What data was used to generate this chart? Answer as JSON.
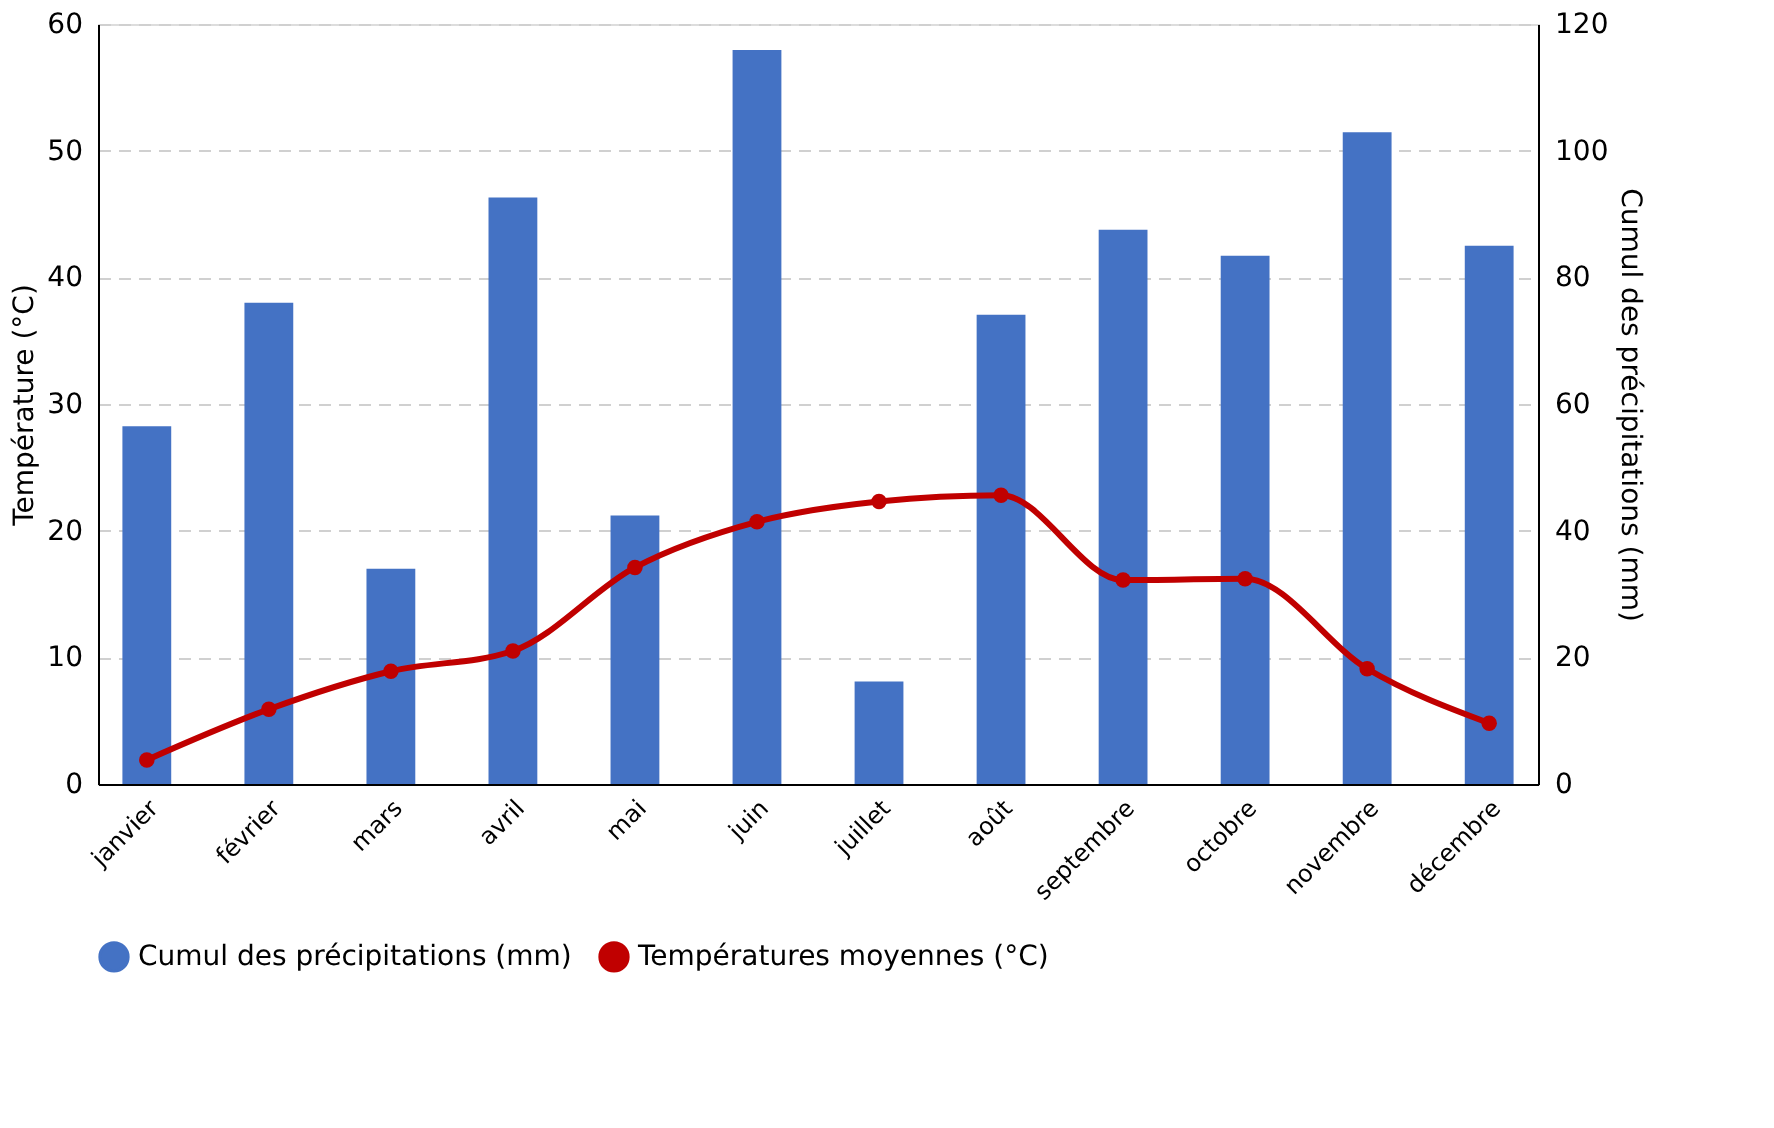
{
  "chart_data": {
    "type": "bar",
    "categories": [
      "janvier",
      "février",
      "mars",
      "avril",
      "mai",
      "juin",
      "juillet",
      "août",
      "septembre",
      "octobre",
      "novembre",
      "décembre"
    ],
    "series": [
      {
        "name": "Cumul des précipitations (mm)",
        "axis": "y2",
        "color": "#4472c4",
        "values": [
          56.5,
          76,
          34,
          92.6,
          42.4,
          115.9,
          16.2,
          74.1,
          87.5,
          83.4,
          102.9,
          85
        ]
      },
      {
        "name": "Températures moyennes (°C)",
        "type": "line",
        "color": "#c00000",
        "marker": "circle",
        "values": [
          1.9,
          5.9,
          8.9,
          10.5,
          17.1,
          20.7,
          22.3,
          22.8,
          16.1,
          16.2,
          9.1,
          4.8
        ]
      }
    ],
    "ylabel": "Température (°C)",
    "y2label": "Cumul des précipitations (mm)",
    "ylim": [
      0,
      60
    ],
    "yticks": [
      0,
      10,
      20,
      30,
      40,
      50,
      60
    ],
    "y2lim": [
      0,
      120
    ],
    "y2ticks": [
      0,
      20,
      40,
      60,
      80,
      100,
      120
    ],
    "grid": "y",
    "legend": "bottom",
    "line_style": "solid"
  }
}
